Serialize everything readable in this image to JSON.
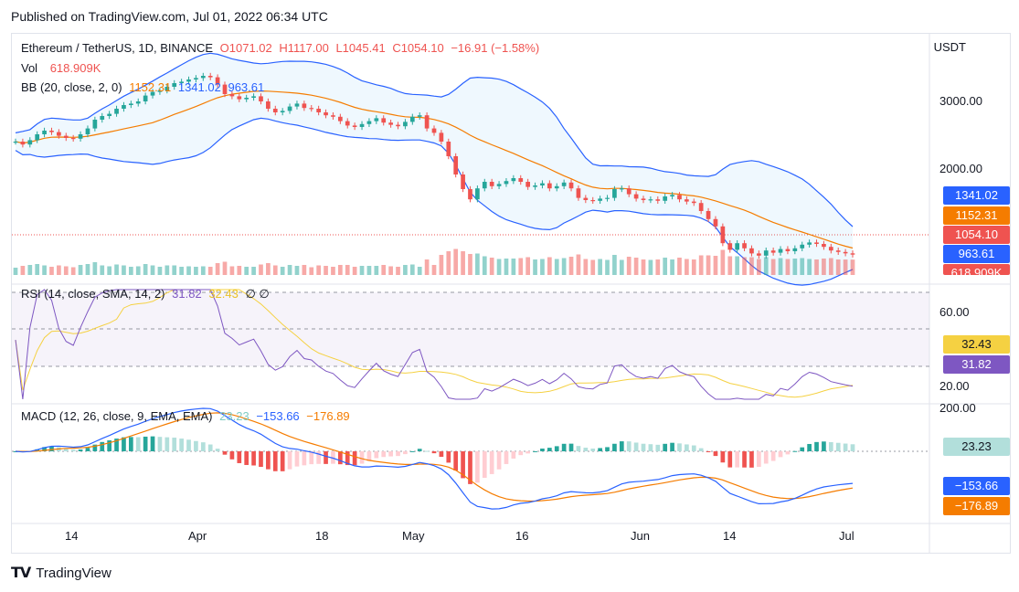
{
  "published": "Published on TradingView.com, Jul 01, 2022 06:34 UTC",
  "footer": {
    "brand": "TradingView"
  },
  "colors": {
    "up": "#26a69a",
    "down": "#ef5350",
    "bb_upper": "#2962ff",
    "bb_basis": "#f57c00",
    "rsi": "#7e57c2",
    "rsi_ma": "#f5d142",
    "macd": "#2962ff",
    "signal": "#f57c00"
  },
  "main": {
    "title": "Ethereum / TetherUS, 1D, BINANCE",
    "o": "O1071.02",
    "h": "H1117.00",
    "l": "L1045.41",
    "c": "C1054.10",
    "chg": "−16.91 (−1.58%)",
    "vol_label": "Vol",
    "vol_value": "618.909K",
    "bb_label": "BB (20, close, 2, 0)",
    "bb_basis": "1152.31",
    "bb_upper": "1341.02",
    "bb_lower": "963.61",
    "currency": "USDT",
    "axis_ticks": [
      "3000.00",
      "2000.00"
    ],
    "tags": {
      "upper": "1341.02",
      "basis": "1152.31",
      "last": "1054.10",
      "lower": "963.61",
      "vol": "618.909K"
    }
  },
  "rsi": {
    "label": "RSI (14, close, SMA, 14, 2)",
    "value": "31.82",
    "ma": "32.43",
    "extra": "∅ ∅",
    "axis_ticks": [
      "60.00",
      "20.00"
    ],
    "tag_ma": "32.43",
    "tag_value": "31.82"
  },
  "macd": {
    "label": "MACD (12, 26, close, 9, EMA, EMA)",
    "hist": "23.23",
    "macd": "−153.66",
    "signal": "−176.89",
    "axis_ticks": [
      "200.00"
    ],
    "tag_hist": "23.23",
    "tag_macd": "−153.66",
    "tag_signal": "−176.89"
  },
  "x_ticks": [
    "14",
    "Apr",
    "18",
    "May",
    "16",
    "Jun",
    "14",
    "Jul"
  ],
  "chart_data": {
    "type": "candlestick",
    "symbol": "Ethereum / TetherUS",
    "interval": "1D",
    "exchange": "BINANCE",
    "y_unit": "USDT",
    "closes": [
      2600,
      2560,
      2620,
      2700,
      2750,
      2730,
      2680,
      2650,
      2640,
      2700,
      2780,
      2900,
      2950,
      2980,
      3050,
      3100,
      3120,
      3150,
      3230,
      3280,
      3300,
      3350,
      3400,
      3420,
      3450,
      3470,
      3500,
      3480,
      3380,
      3250,
      3220,
      3180,
      3200,
      3220,
      3150,
      3050,
      3000,
      3020,
      3080,
      3120,
      3060,
      3050,
      3000,
      2960,
      2940,
      2880,
      2820,
      2800,
      2840,
      2880,
      2920,
      2860,
      2830,
      2810,
      2870,
      2940,
      2960,
      2780,
      2720,
      2600,
      2400,
      2150,
      1950,
      1810,
      1960,
      2050,
      1990,
      2020,
      2060,
      2100,
      2050,
      1980,
      2000,
      2030,
      1960,
      1990,
      2040,
      1960,
      1830,
      1800,
      1790,
      1820,
      1830,
      1950,
      1960,
      1880,
      1820,
      1800,
      1810,
      1790,
      1850,
      1870,
      1810,
      1780,
      1760,
      1650,
      1540,
      1440,
      1210,
      1120,
      1210,
      1140,
      1070,
      1040,
      1110,
      1080,
      1130,
      1100,
      1140,
      1190,
      1220,
      1200,
      1160,
      1110,
      1090,
      1071,
      1054
    ],
    "volume_last": "618.909K",
    "bollinger": {
      "period": 20,
      "basis_last": 1152.31,
      "upper_last": 1341.02,
      "lower_last": 963.61
    },
    "rsi_last": 31.82,
    "rsi_ma_last": 32.43,
    "macd_last": -153.66,
    "signal_last": -176.89,
    "hist_last": 23.23,
    "x_tick_labels": [
      "14",
      "Apr",
      "18",
      "May",
      "16",
      "Jun",
      "14",
      "Jul"
    ]
  }
}
